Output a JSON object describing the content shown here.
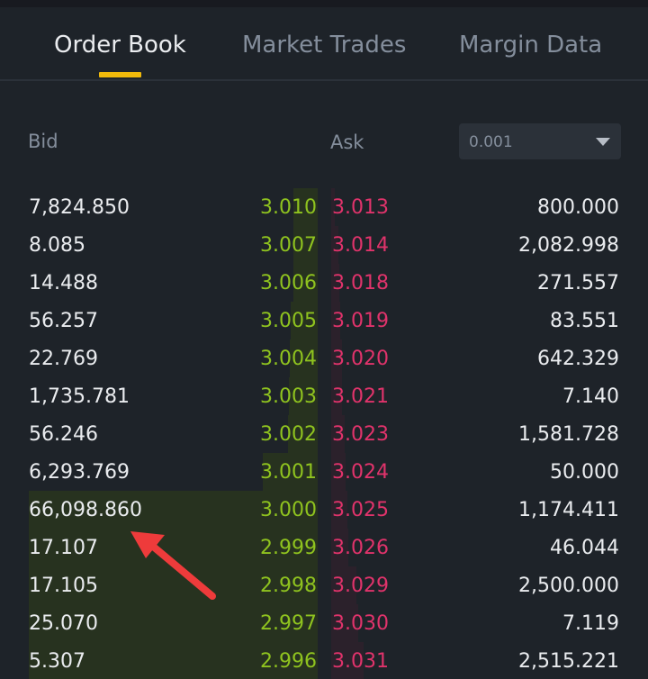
{
  "tabs": [
    {
      "label": "Order Book",
      "active": true
    },
    {
      "label": "Market Trades",
      "active": false
    },
    {
      "label": "Margin Data",
      "active": false
    }
  ],
  "columns": {
    "bid": "Bid",
    "ask": "Ask"
  },
  "precision": {
    "value": "0.001",
    "icon": "caret-down-icon"
  },
  "colors": {
    "bid_price": "#8fc31f",
    "ask_price": "#e0336b",
    "accent": "#f0b90b",
    "annotation_arrow": "#ee3b3b"
  },
  "rows": [
    {
      "bid_qty": "7,824.850",
      "bid_price": "3.010",
      "ask_price": "3.013",
      "ask_qty": "800.000"
    },
    {
      "bid_qty": "8.085",
      "bid_price": "3.007",
      "ask_price": "3.014",
      "ask_qty": "2,082.998"
    },
    {
      "bid_qty": "14.488",
      "bid_price": "3.006",
      "ask_price": "3.018",
      "ask_qty": "271.557"
    },
    {
      "bid_qty": "56.257",
      "bid_price": "3.005",
      "ask_price": "3.019",
      "ask_qty": "83.551"
    },
    {
      "bid_qty": "22.769",
      "bid_price": "3.004",
      "ask_price": "3.020",
      "ask_qty": "642.329"
    },
    {
      "bid_qty": "1,735.781",
      "bid_price": "3.003",
      "ask_price": "3.021",
      "ask_qty": "7.140"
    },
    {
      "bid_qty": "56.246",
      "bid_price": "3.002",
      "ask_price": "3.023",
      "ask_qty": "1,581.728"
    },
    {
      "bid_qty": "6,293.769",
      "bid_price": "3.001",
      "ask_price": "3.024",
      "ask_qty": "50.000"
    },
    {
      "bid_qty": "66,098.860",
      "bid_price": "3.000",
      "ask_price": "3.025",
      "ask_qty": "1,174.411"
    },
    {
      "bid_qty": "17.107",
      "bid_price": "2.999",
      "ask_price": "3.026",
      "ask_qty": "46.044"
    },
    {
      "bid_qty": "17.105",
      "bid_price": "2.998",
      "ask_price": "3.029",
      "ask_qty": "2,500.000"
    },
    {
      "bid_qty": "25.070",
      "bid_price": "2.997",
      "ask_price": "3.030",
      "ask_qty": "7.119"
    },
    {
      "bid_qty": "5.307",
      "bid_price": "2.996",
      "ask_price": "3.031",
      "ask_qty": "2,515.221"
    }
  ]
}
